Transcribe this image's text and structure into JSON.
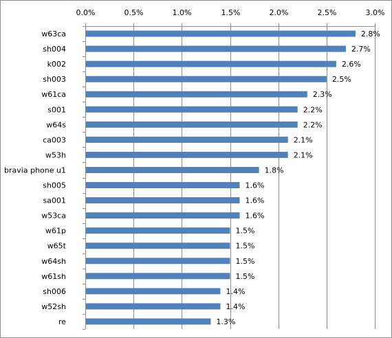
{
  "chart_data": {
    "type": "bar",
    "orientation": "horizontal",
    "categories": [
      "w63ca",
      "sh004",
      "k002",
      "sh003",
      "w61ca",
      "s001",
      "w64s",
      "ca003",
      "w53h",
      "bravia phone u1",
      "sh005",
      "sa001",
      "w53ca",
      "w61p",
      "w65t",
      "w64sh",
      "w61sh",
      "sh006",
      "w52sh",
      "re"
    ],
    "values": [
      2.8,
      2.7,
      2.6,
      2.5,
      2.3,
      2.2,
      2.2,
      2.1,
      2.1,
      1.8,
      1.6,
      1.6,
      1.6,
      1.5,
      1.5,
      1.5,
      1.5,
      1.4,
      1.4,
      1.3
    ],
    "value_labels": [
      "2.8%",
      "2.7%",
      "2.6%",
      "2.5%",
      "2.3%",
      "2.2%",
      "2.2%",
      "2.1%",
      "2.1%",
      "1.8%",
      "1.6%",
      "1.6%",
      "1.6%",
      "1.5%",
      "1.5%",
      "1.5%",
      "1.5%",
      "1.4%",
      "1.4%",
      "1.3%"
    ],
    "xlim": [
      0,
      3.0
    ],
    "x_ticks": [
      0,
      0.5,
      1.0,
      1.5,
      2.0,
      2.5,
      3.0
    ],
    "x_tick_labels": [
      "0.0%",
      "0.5%",
      "1.0%",
      "1.5%",
      "2.0%",
      "2.5%",
      "3.0%"
    ],
    "x_axis_position": "top",
    "grid": true,
    "legend": "none",
    "title": "",
    "xlabel": "",
    "ylabel": "",
    "colors": {
      "bar": "#4f81bd",
      "grid": "#8c8c8c",
      "axis": "#8c8c8c",
      "text": "#000000"
    }
  }
}
